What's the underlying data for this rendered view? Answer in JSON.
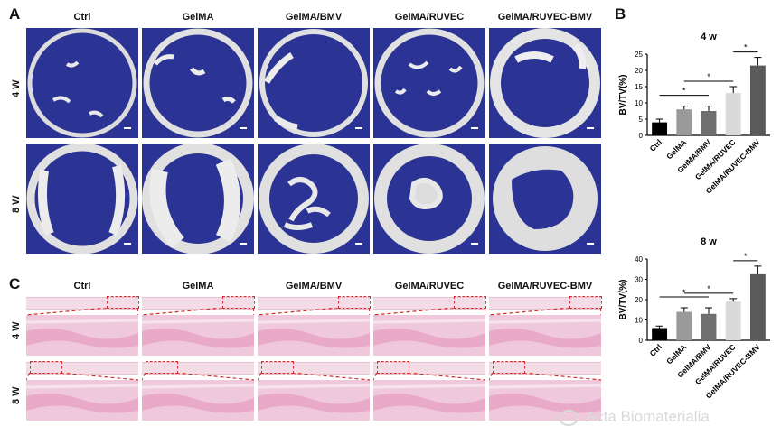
{
  "panels": {
    "A": "A",
    "B": "B",
    "C": "C"
  },
  "groups": [
    "Ctrl",
    "GelMA",
    "GelMA/BMV",
    "GelMA/RUVEC",
    "GelMA/RUVEC-BMV"
  ],
  "rows": [
    "4 W",
    "8 W"
  ],
  "watermark": "Acta Biomaterialia",
  "colors": {
    "ct_background": "#2b3394",
    "bone": "#e8e8e8",
    "he_tissue": "#f0c8db",
    "highlight_box": "#d32f2f"
  },
  "chart_data": [
    {
      "type": "bar",
      "title": "4 w",
      "ylabel": "BV/TV(%)",
      "categories": [
        "Ctrl",
        "GelMA",
        "GelMA/BMV",
        "GelMA/RUVEC",
        "GelMA/RUVEC-BMV"
      ],
      "values": [
        4,
        8,
        7.5,
        13,
        21.5
      ],
      "errors": [
        1,
        1,
        1.5,
        2,
        2.5
      ],
      "ylim": [
        0,
        25
      ],
      "yticks": [
        0,
        5,
        10,
        15,
        20,
        25
      ],
      "bar_colors": [
        "#000000",
        "#9a9a9a",
        "#6f6f6f",
        "#d9d9d9",
        "#5a5a5a"
      ],
      "significance": [
        "*",
        "*",
        "*"
      ]
    },
    {
      "type": "bar",
      "title": "8 w",
      "ylabel": "BV/TV(%)",
      "categories": [
        "Ctrl",
        "GelMA",
        "GelMA/BMV",
        "GelMA/RUVEC",
        "GelMA/RUVEC-BMV"
      ],
      "values": [
        6,
        14,
        13,
        19,
        32.5
      ],
      "errors": [
        1,
        2,
        3,
        1.5,
        4
      ],
      "ylim": [
        0,
        40
      ],
      "yticks": [
        0,
        10,
        20,
        30,
        40
      ],
      "bar_colors": [
        "#000000",
        "#9a9a9a",
        "#6f6f6f",
        "#d9d9d9",
        "#5a5a5a"
      ],
      "significance": [
        "*",
        "*",
        "*"
      ]
    }
  ]
}
